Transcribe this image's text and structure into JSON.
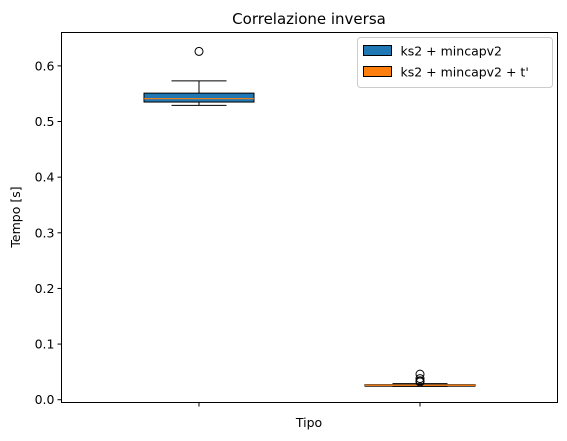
{
  "chart_data": {
    "type": "boxplot",
    "title": "Correlazione inversa",
    "xlabel": "Tipo",
    "ylabel": "Tempo [s]",
    "ylim": [
      -0.005,
      0.66
    ],
    "yticks": [
      0.0,
      0.1,
      0.2,
      0.3,
      0.4,
      0.5,
      0.6
    ],
    "ytick_labels": [
      "0.0",
      "0.1",
      "0.2",
      "0.3",
      "0.4",
      "0.5",
      "0.6"
    ],
    "grid": false,
    "legend": {
      "placement": "top-right",
      "entries": [
        {
          "label": "ks2 + mincapv2",
          "color": "#1f77b4"
        },
        {
          "label": "ks2 + mincapv2 + t'",
          "color": "#ff7f0e"
        }
      ]
    },
    "median_color": "#ff7f0e",
    "series": [
      {
        "name": "ks2 + mincapv2",
        "color": "#1f77b4",
        "whisker_low": 0.529,
        "q1": 0.535,
        "median": 0.541,
        "q3": 0.551,
        "whisker_high": 0.573,
        "outliers": [
          0.626
        ]
      },
      {
        "name": "ks2 + mincapv2 + t'",
        "color": "#ff7f0e",
        "whisker_low": 0.024,
        "q1": 0.025,
        "median": 0.026,
        "q3": 0.027,
        "whisker_high": 0.029,
        "outliers": [
          0.032,
          0.034,
          0.038,
          0.046
        ]
      }
    ]
  }
}
